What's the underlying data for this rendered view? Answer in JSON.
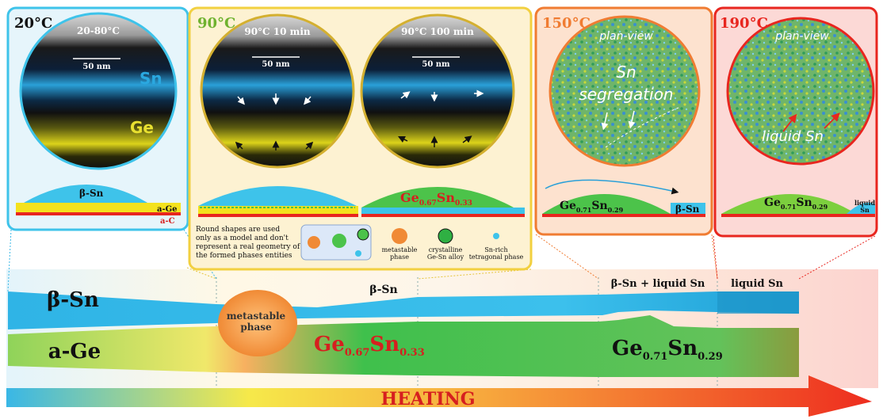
{
  "panels": {
    "p20": {
      "temp": "20°C",
      "circle_label": "20-80°C",
      "scale": "50 nm",
      "sn_label": "Sn",
      "ge_label": "Ge",
      "phase": "β-Sn",
      "layer1": "a-Ge",
      "layer2": "a-C"
    },
    "p90": {
      "temp": "90°C",
      "circle1_label": "90°C 10 min",
      "circle2_label": "90°C 100 min",
      "scale": "50 nm",
      "alloy_main": "Ge",
      "alloy_sub1": "0.67",
      "alloy_mid": "Sn",
      "alloy_sub2": "0.33",
      "note_lines": [
        "Round shapes are used",
        "only as a model and don't",
        "represent a real geometry of",
        "the formed phases entities"
      ],
      "legend_meta": "metastable",
      "legend_meta2": "phase",
      "legend_cryst": "crystalline",
      "legend_cryst2": "Ge-Sn alloy",
      "legend_snrich": "Sn-rich",
      "legend_snrich2": "tetragonal phase"
    },
    "p150": {
      "temp": "150°C",
      "view": "plan-view",
      "seg1": "Sn",
      "seg2": "segregation",
      "alloy_main": "Ge",
      "alloy_sub1": "0.71",
      "alloy_mid": "Sn",
      "alloy_sub2": "0.29",
      "right": "β-Sn"
    },
    "p190": {
      "temp": "190°C",
      "view": "plan-view",
      "liquid": "liquid Sn",
      "alloy_main": "Ge",
      "alloy_sub1": "0.71",
      "alloy_mid": "Sn",
      "alloy_sub2": "0.29",
      "right1": "liquid",
      "right2": "Sn"
    }
  },
  "bands": {
    "bsn": "β-Sn",
    "age": "a-Ge",
    "metastable1": "metastable",
    "metastable2": "phase",
    "bsn_mid": "β-Sn",
    "alloy1_main": "Ge",
    "alloy1_sub1": "0.67",
    "alloy1_mid": "Sn",
    "alloy1_sub2": "0.33",
    "bsn_liquid": "β-Sn + liquid Sn",
    "liquid": "liquid Sn",
    "alloy2_main": "Ge",
    "alloy2_sub1": "0.71",
    "alloy2_mid": "Sn",
    "alloy2_sub2": "0.29"
  },
  "arrow_label": "HEATING",
  "colors": {
    "cyan": "#3ec3ea",
    "yellow": "#f3d93a",
    "green": "#4cc34a",
    "orange": "#f07c32",
    "red": "#e8261f",
    "redtext": "#d61f1f"
  }
}
